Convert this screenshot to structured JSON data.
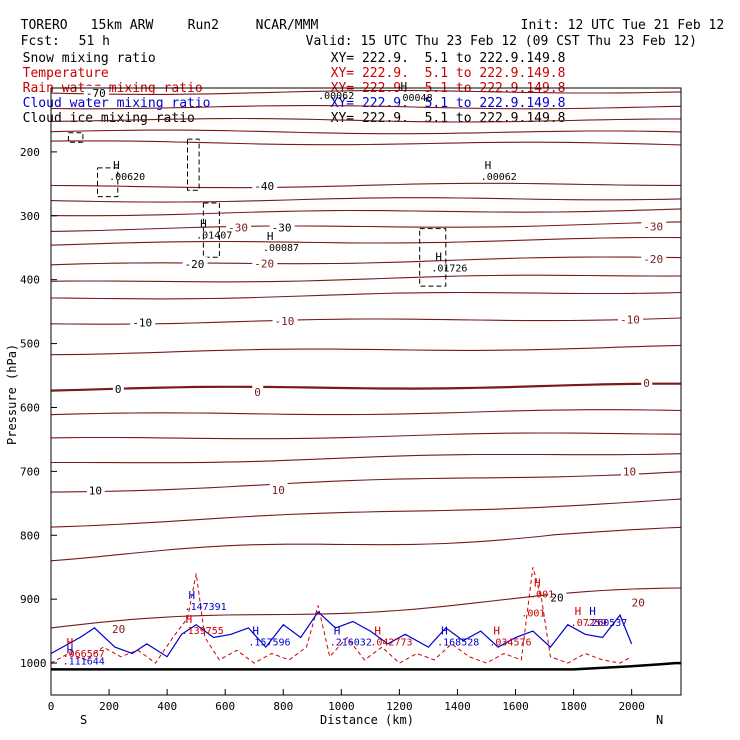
{
  "header": {
    "model": "TORERO",
    "resolution": "15km ARW",
    "run": "Run2",
    "org": "NCAR/MMM",
    "init": "Init: 12 UTC Tue 21 Feb 12",
    "fcst_label": "Fcst:",
    "fcst_value": "51 h",
    "valid": "Valid: 15 UTC Thu 23 Feb 12 (09 CST Thu 23 Feb 12)"
  },
  "fields": [
    {
      "name": "Snow mixing ratio",
      "color": "#000000",
      "xy": "XY= 222.9.  5.1 to 222.9.149.8"
    },
    {
      "name": "Temperature",
      "color": "#cc0000",
      "xy": "XY= 222.9.  5.1 to 222.9.149.8"
    },
    {
      "name": "Rain water mixing ratio",
      "color": "#cc0000",
      "xy": "XY= 222.9.  5.1 to 222.9.149.8"
    },
    {
      "name": "Cloud water mixing ratio",
      "color": "#0000cc",
      "xy": "XY= 222.9.  5.1 to 222.9.149.8"
    },
    {
      "name": "Cloud ice mixing ratio",
      "color": "#000000",
      "xy": "XY= 222.9.  5.1 to 222.9.149.8"
    }
  ],
  "chart_data": {
    "type": "line",
    "xlabel": "Distance (km)",
    "ylabel": "Pressure (hPa)",
    "xlim": [
      0,
      2170
    ],
    "ylim": [
      1050,
      100
    ],
    "x_ticks": [
      0,
      200,
      400,
      600,
      800,
      1000,
      1200,
      1400,
      1600,
      1800,
      2000
    ],
    "y_ticks": [
      200,
      300,
      400,
      500,
      600,
      700,
      800,
      900,
      1000
    ],
    "endpoint_labels": {
      "left": "S",
      "right": "N"
    },
    "colors": {
      "temperature": "#7a1a1a",
      "rain": "#cc0000",
      "cloud_water": "#0000cc",
      "ice": "#000000",
      "ground": "#000000"
    },
    "temperature_contours": [
      {
        "level": -70,
        "p_left": 108,
        "p_right": 105,
        "label": "-70",
        "label_x": 120
      },
      {
        "level": null,
        "p_left": 130,
        "p_right": 130
      },
      {
        "level": null,
        "p_left": 150,
        "p_right": 151
      },
      {
        "level": null,
        "p_left": 168,
        "p_right": 170
      },
      {
        "level": null,
        "p_left": 185,
        "p_right": 188
      },
      {
        "level": -40,
        "p_left": 255,
        "p_right": 250,
        "label": "-40",
        "label_x": 700
      },
      {
        "level": null,
        "p_left": 277,
        "p_right": 272
      },
      {
        "level": null,
        "p_left": 298,
        "p_right": 290
      },
      {
        "level": -30,
        "p_left": 322,
        "p_right": 312,
        "label": "-30",
        "label_x": 760
      },
      {
        "level": null,
        "p_left": 345,
        "p_right": 336
      },
      {
        "level": -20,
        "p_left": 378,
        "p_right": 365,
        "label": "-20",
        "label_x": 460
      },
      {
        "level": null,
        "p_left": 405,
        "p_right": 392
      },
      {
        "level": null,
        "p_left": 430,
        "p_right": 418
      },
      {
        "level": -10,
        "p_left": 468,
        "p_right": 460,
        "label": "-10",
        "label_x": 280
      },
      {
        "level": null,
        "p_left": 515,
        "p_right": 505
      },
      {
        "level": 0,
        "p_left": 572,
        "p_right": 565,
        "label": "0",
        "label_x": 220,
        "bold": true
      },
      {
        "level": null,
        "p_left": 612,
        "p_right": 605
      },
      {
        "level": null,
        "p_left": 650,
        "p_right": 640
      },
      {
        "level": null,
        "p_left": 688,
        "p_right": 670
      },
      {
        "level": 10,
        "p_left": 732,
        "p_right": 700,
        "label": "10",
        "label_x": 130
      },
      {
        "level": null,
        "p_left": 785,
        "p_right": 745
      },
      {
        "level": null,
        "p_left": 835,
        "p_right": 790
      },
      {
        "level": 20,
        "p_left": 945,
        "p_right": 885,
        "label": "20",
        "label_x": 1720
      }
    ],
    "contour_labels_extra": [
      {
        "text": "-30",
        "x": 610,
        "p": 318,
        "color": "#7a1a1a"
      },
      {
        "text": "-20",
        "x": 700,
        "p": 375,
        "color": "#7a1a1a"
      },
      {
        "text": "-10",
        "x": 770,
        "p": 465,
        "color": "#7a1a1a"
      },
      {
        "text": "-10",
        "x": 1960,
        "p": 462,
        "color": "#7a1a1a"
      },
      {
        "text": "-20",
        "x": 2040,
        "p": 368,
        "color": "#7a1a1a"
      },
      {
        "text": "-30",
        "x": 2040,
        "p": 317,
        "color": "#7a1a1a"
      },
      {
        "text": "0",
        "x": 700,
        "p": 576,
        "color": "#7a1a1a"
      },
      {
        "text": "0",
        "x": 2040,
        "p": 562,
        "color": "#7a1a1a"
      },
      {
        "text": "10",
        "x": 760,
        "p": 729,
        "color": "#7a1a1a"
      },
      {
        "text": "10",
        "x": 1970,
        "p": 700,
        "color": "#7a1a1a"
      },
      {
        "text": "20",
        "x": 2000,
        "p": 905,
        "color": "#7a1a1a"
      },
      {
        "text": "20",
        "x": 210,
        "p": 947,
        "color": "#7a1a1a"
      }
    ],
    "maxima": [
      {
        "label": "H",
        "value": ".00620",
        "x": 200,
        "p": 227,
        "color": "#000000"
      },
      {
        "label": "H",
        "value": ".01407",
        "x": 500,
        "p": 318,
        "color": "#000000"
      },
      {
        "label": "H",
        "value": ".00087",
        "x": 730,
        "p": 338,
        "color": "#000000"
      },
      {
        "label": "H",
        "value": ".01726",
        "x": 1310,
        "p": 370,
        "color": "#000000"
      },
      {
        "label": "H",
        "value": ".00062",
        "x": 1480,
        "p": 227,
        "color": "#000000"
      },
      {
        "label": "H",
        "value": ".00048",
        "x": 1190,
        "p": 103,
        "color": "#000000"
      },
      {
        "label": "",
        "value": ".00062",
        "x": 920,
        "p": 100,
        "color": "#000000"
      },
      {
        "label": "H",
        "value": ".147391",
        "x": 460,
        "p": 900,
        "color": "#0000cc"
      },
      {
        "label": "H",
        "value": ".139755",
        "x": 450,
        "p": 937,
        "color": "#cc0000"
      },
      {
        "label": "H",
        "value": ".157596",
        "x": 680,
        "p": 955,
        "color": "#0000cc"
      },
      {
        "label": "H",
        "value": ".216032",
        "x": 960,
        "p": 955,
        "color": "#0000cc"
      },
      {
        "label": "H",
        "value": ".042773",
        "x": 1100,
        "p": 955,
        "color": "#cc0000"
      },
      {
        "label": "H",
        "value": ".168528",
        "x": 1330,
        "p": 955,
        "color": "#0000cc"
      },
      {
        "label": "H",
        "value": ".034576",
        "x": 1510,
        "p": 955,
        "color": "#cc0000"
      },
      {
        "label": "H",
        "value": ".001",
        "x": 1650,
        "p": 880,
        "color": "#cc0000"
      },
      {
        "label": "",
        "value": ".001",
        "x": 1620,
        "p": 910,
        "color": "#cc0000"
      },
      {
        "label": "H",
        "value": ".07259",
        "x": 1790,
        "p": 925,
        "color": "#cc0000"
      },
      {
        "label": "H",
        "value": ".260537",
        "x": 1840,
        "p": 925,
        "color": "#0000cc"
      },
      {
        "label": "H",
        "value": ".066567",
        "x": 40,
        "p": 973,
        "color": "#cc0000"
      },
      {
        "label": "H",
        "value": ".111644",
        "x": 40,
        "p": 985,
        "color": "#0000cc"
      }
    ],
    "ice_contours": [
      {
        "x": [
          470,
          510,
          510,
          470,
          470
        ],
        "p": [
          180,
          180,
          260,
          260,
          180
        ]
      },
      {
        "x": [
          525,
          580,
          580,
          525,
          525
        ],
        "p": [
          280,
          280,
          365,
          365,
          280
        ]
      },
      {
        "x": [
          1270,
          1360,
          1360,
          1270,
          1270
        ],
        "p": [
          320,
          320,
          410,
          410,
          320
        ]
      },
      {
        "x": [
          160,
          230,
          230,
          160,
          160
        ],
        "p": [
          225,
          225,
          270,
          270,
          225
        ]
      },
      {
        "x": [
          60,
          110,
          110,
          60,
          60
        ],
        "p": [
          170,
          170,
          185,
          185,
          170
        ]
      }
    ],
    "cloud_water_line": {
      "x": [
        0,
        100,
        150,
        220,
        280,
        330,
        400,
        450,
        500,
        560,
        620,
        680,
        740,
        800,
        860,
        920,
        980,
        1040,
        1100,
        1160,
        1220,
        1300,
        1360,
        1420,
        1480,
        1540,
        1600,
        1660,
        1720,
        1780,
        1840,
        1900,
        1960,
        2000
      ],
      "p": [
        985,
        960,
        945,
        975,
        985,
        970,
        990,
        955,
        940,
        960,
        955,
        945,
        975,
        940,
        960,
        920,
        945,
        935,
        950,
        970,
        955,
        975,
        945,
        965,
        950,
        975,
        960,
        950,
        975,
        940,
        955,
        960,
        925,
        970
      ]
    },
    "rain_line": {
      "x": [
        0,
        60,
        120,
        180,
        240,
        300,
        360,
        420,
        470,
        500,
        530,
        580,
        640,
        700,
        760,
        820,
        880,
        920,
        960,
        1020,
        1080,
        1140,
        1200,
        1260,
        1320,
        1380,
        1440,
        1500,
        1560,
        1620,
        1660,
        1690,
        1720,
        1780,
        1840,
        1900,
        1960,
        2000
      ],
      "p": [
        1000,
        985,
        995,
        975,
        990,
        980,
        1000,
        960,
        930,
        860,
        960,
        995,
        980,
        1000,
        985,
        995,
        975,
        910,
        990,
        960,
        995,
        975,
        1000,
        985,
        995,
        970,
        990,
        1000,
        985,
        995,
        850,
        900,
        990,
        1000,
        985,
        995,
        1000,
        990
      ]
    },
    "ground": {
      "x": [
        0,
        300,
        600,
        900,
        1200,
        1500,
        1800,
        2000,
        2100,
        2150,
        2170
      ],
      "p": [
        1010,
        1010,
        1010,
        1010,
        1010,
        1010,
        1010,
        1005,
        1002,
        1000,
        1000
      ]
    }
  }
}
